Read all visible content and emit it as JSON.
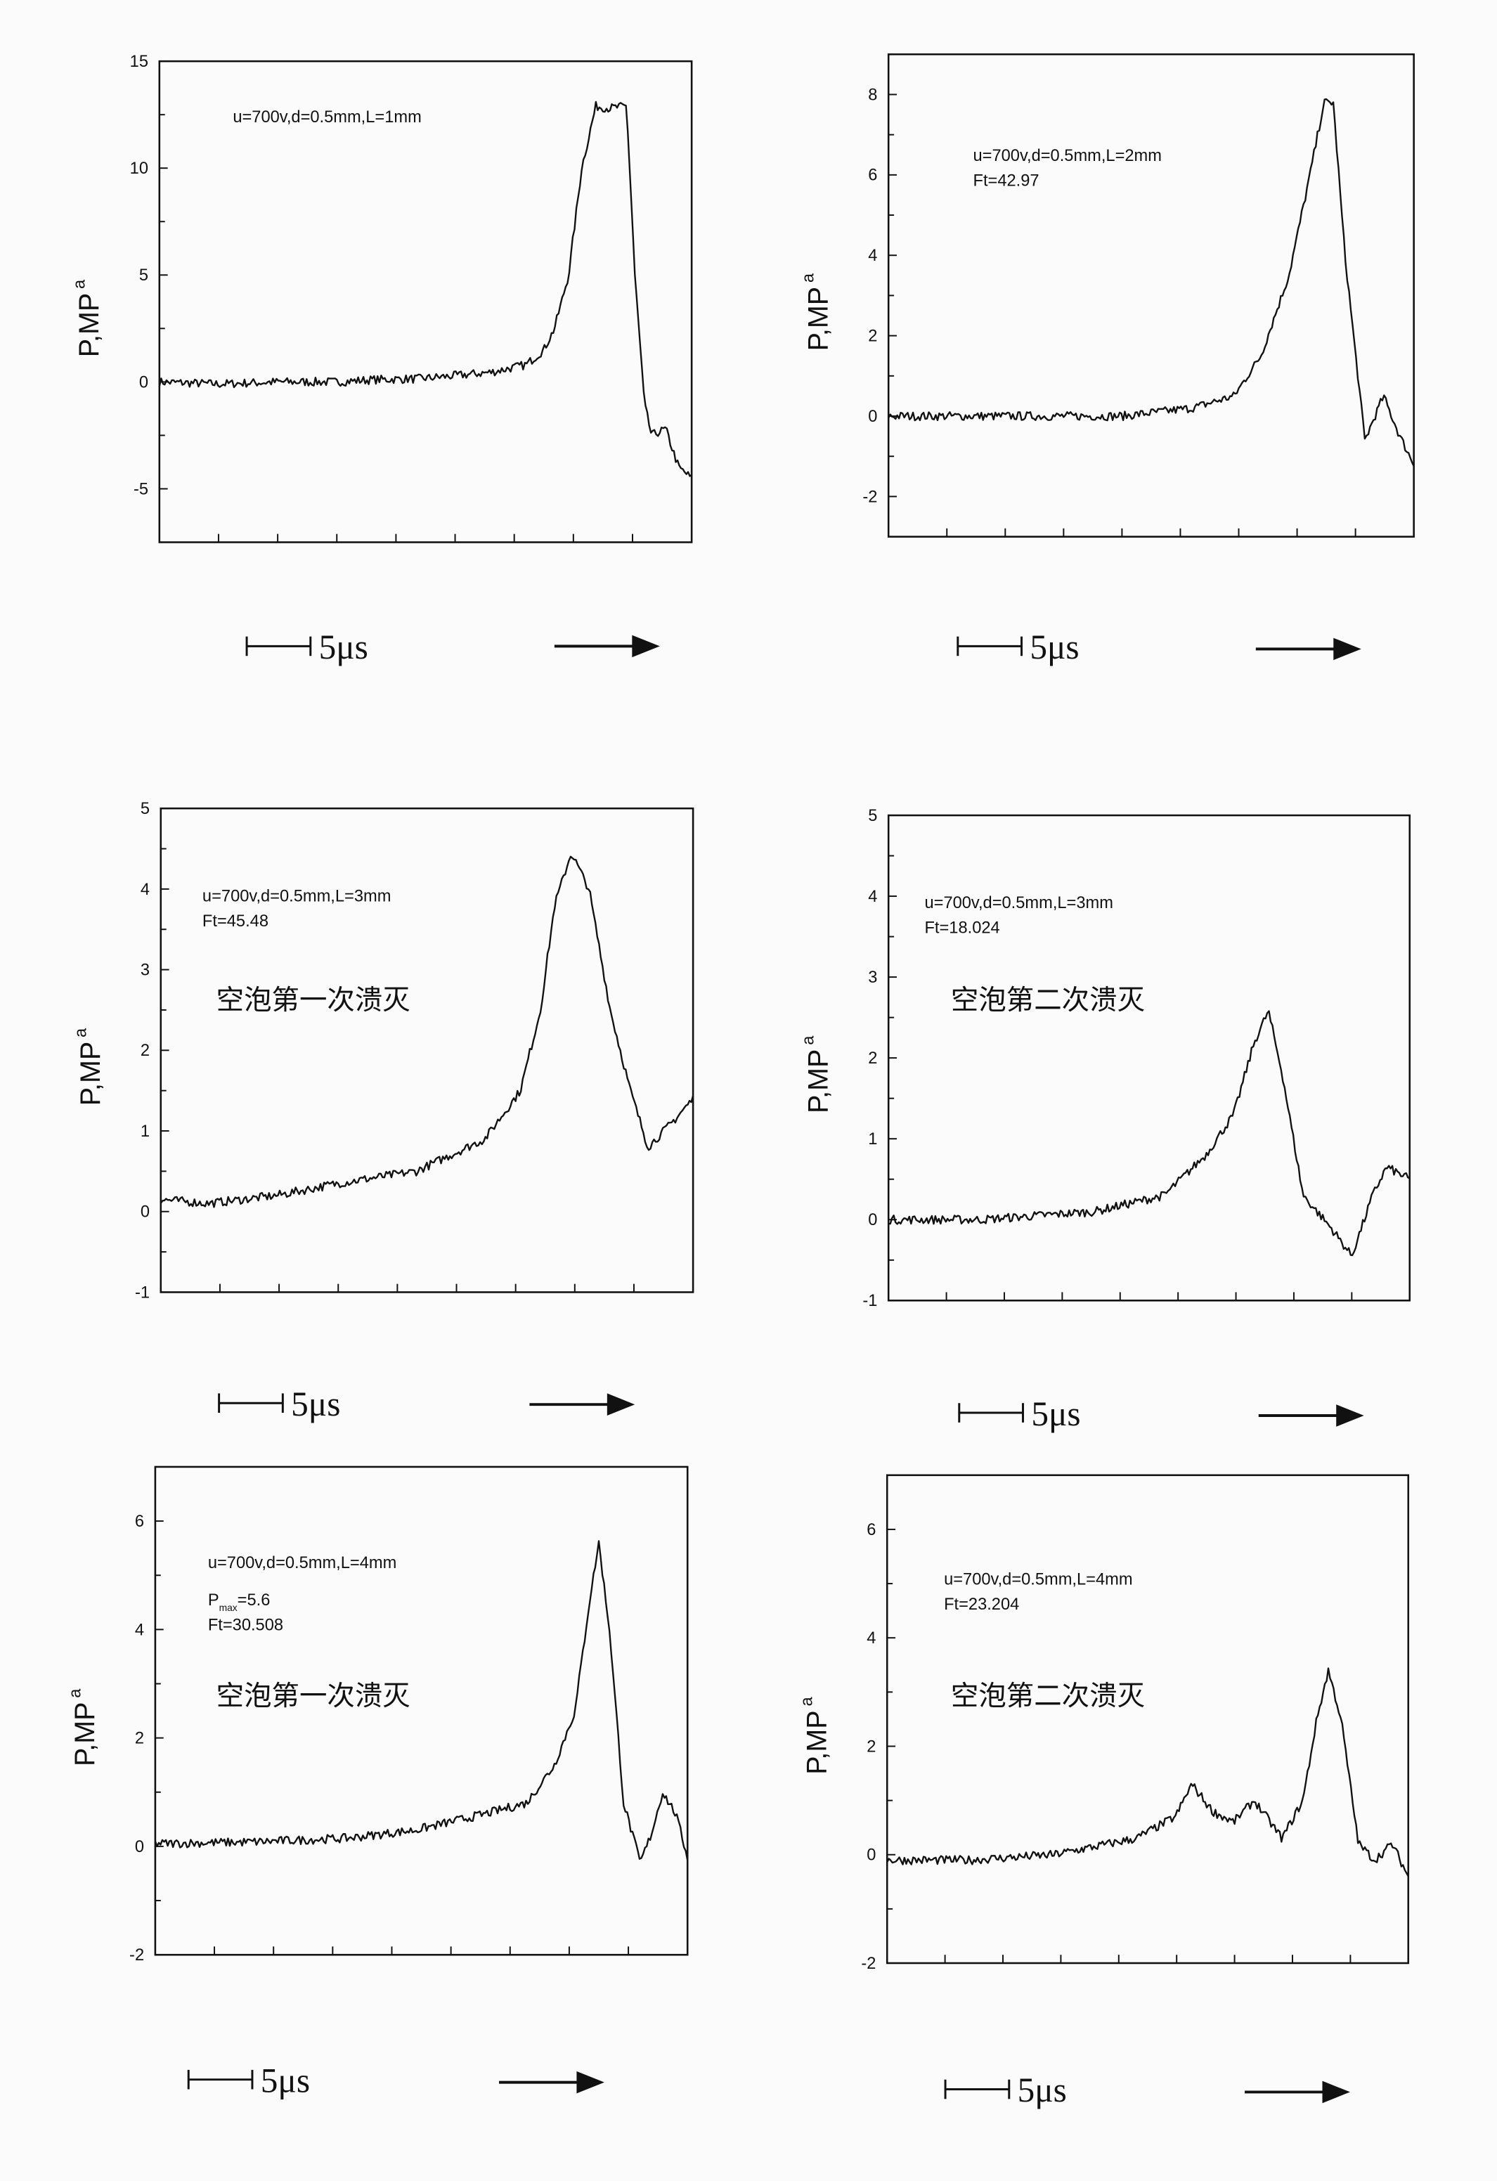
{
  "page": {
    "background": "#fbfbfb",
    "line_color": "#111111"
  },
  "scale_bar_label": "5μs",
  "chart_data": [
    {
      "type": "line",
      "ylabel": "P,MP",
      "ylabel_subscript": "a",
      "annotations": [
        "u=700v,d=0.5mm,L=1mm"
      ],
      "caption": "",
      "ylim": [
        -7.5,
        15
      ],
      "yticks": [
        -5,
        0,
        5,
        10,
        15
      ],
      "xlim": [
        0,
        45
      ],
      "x_unit": "μs",
      "grid": false,
      "x": [
        0,
        5,
        10,
        15,
        18,
        22,
        25.2,
        28,
        31,
        32.5,
        33.4,
        34.6,
        35.7,
        36.9,
        38,
        39.5,
        40.2,
        41,
        41.6,
        42.8,
        43.9,
        45
      ],
      "y": [
        0,
        -0.1,
        0,
        0,
        0.1,
        0.15,
        0.3,
        0.45,
        0.8,
        1.5,
        2.5,
        5,
        10,
        12.9,
        12.8,
        12.9,
        5,
        -1,
        -2.5,
        -2.2,
        -4,
        -4.5
      ]
    },
    {
      "type": "line",
      "ylabel": "P,MP",
      "ylabel_subscript": "a",
      "annotations": [
        "u=700v,d=0.5mm,L=2mm",
        "Ft=42.97"
      ],
      "caption": "",
      "ylim": [
        -3,
        9
      ],
      "yticks": [
        -2,
        0,
        2,
        4,
        6,
        8
      ],
      "xlim": [
        0,
        45
      ],
      "x_unit": "μs",
      "grid": false,
      "x": [
        0,
        10,
        20,
        26,
        29.6,
        31.9,
        34.3,
        36.1,
        37.3,
        38.1,
        39.1,
        40.8,
        42.4,
        43.8,
        45
      ],
      "y": [
        0,
        0,
        0,
        0.2,
        0.5,
        1.5,
        3.5,
        6,
        7.8,
        7.8,
        4,
        -0.6,
        0.5,
        -0.5,
        -1.2
      ]
    },
    {
      "type": "line",
      "ylabel": "P,MP",
      "ylabel_subscript": "a",
      "annotations": [
        "u=700v,d=0.5mm,L=3mm",
        "Ft=45.48"
      ],
      "caption": "空泡第一次溃灭",
      "ylim": [
        -1,
        5
      ],
      "yticks": [
        -1,
        0,
        1,
        2,
        3,
        4,
        5
      ],
      "xlim": [
        0,
        45
      ],
      "x_unit": "μs",
      "grid": false,
      "x": [
        0,
        4,
        9.8,
        15,
        21.6,
        27.4,
        30.4,
        32.1,
        33.3,
        34.7,
        36.2,
        38,
        39.7,
        41.2,
        43.2,
        45
      ],
      "y": [
        0.15,
        0.1,
        0.2,
        0.35,
        0.5,
        0.9,
        1.5,
        2.5,
        3.8,
        4.45,
        4,
        2.5,
        1.5,
        0.8,
        1.1,
        1.4
      ]
    },
    {
      "type": "line",
      "ylabel": "P,MP",
      "ylabel_subscript": "a",
      "annotations": [
        "u=700v,d=0.5mm,L=3mm",
        "Ft=18.024"
      ],
      "caption": "空泡第二次溃灭",
      "ylim": [
        -1,
        5
      ],
      "yticks": [
        -1,
        0,
        1,
        2,
        3,
        4,
        5
      ],
      "xlim": [
        0,
        45
      ],
      "x_unit": "μs",
      "grid": false,
      "x": [
        0,
        8,
        17.8,
        23.8,
        27.4,
        29.8,
        31.6,
        32.8,
        34,
        35.8,
        38.2,
        40,
        41.8,
        43,
        45
      ],
      "y": [
        0,
        0,
        0.1,
        0.3,
        0.8,
        1.3,
        2.2,
        2.58,
        1.8,
        0.3,
        -0.1,
        -0.45,
        0.3,
        0.65,
        0.5
      ]
    },
    {
      "type": "line",
      "ylabel": "P,MP",
      "ylabel_subscript": "a",
      "annotations": [
        "u=700v,d=0.5mm,L=4mm",
        "P|max|=5.6",
        "Ft=30.508"
      ],
      "caption": "空泡第一次溃灭",
      "ylim": [
        -2,
        7
      ],
      "yticks": [
        -2,
        0,
        2,
        4,
        6
      ],
      "xlim": [
        0,
        45
      ],
      "x_unit": "μs",
      "grid": false,
      "x": [
        0,
        8,
        16.2,
        22,
        27.9,
        31.4,
        33.75,
        35.5,
        36.7,
        37.5,
        38.4,
        39.6,
        41,
        41.9,
        42.9,
        44,
        45
      ],
      "y": [
        0.05,
        0.08,
        0.15,
        0.3,
        0.6,
        0.8,
        1.5,
        2.5,
        4.5,
        5.6,
        4,
        0.8,
        -0.3,
        0.2,
        1.0,
        0.6,
        -0.2
      ]
    },
    {
      "type": "line",
      "ylabel": "P,MP",
      "ylabel_subscript": "a",
      "annotations": [
        "u=700v,d=0.5mm,L=4mm",
        "Ft=23.204"
      ],
      "caption": "空泡第二次溃灭",
      "ylim": [
        -2,
        7
      ],
      "yticks": [
        -2,
        0,
        2,
        4,
        6
      ],
      "xlim": [
        0,
        45
      ],
      "x_unit": "μs",
      "grid": false,
      "x": [
        0,
        7,
        14.4,
        21.5,
        24.9,
        26.3,
        28.1,
        29.9,
        31.7,
        34.1,
        35.9,
        37.1,
        38.1,
        39.2,
        40.7,
        42.1,
        43.6,
        45
      ],
      "y": [
        -0.1,
        -0.1,
        0,
        0.3,
        0.7,
        1.3,
        0.8,
        0.6,
        1.0,
        0.3,
        1.0,
        2.5,
        3.4,
        2.5,
        0.2,
        -0.1,
        0.2,
        -0.4
      ]
    }
  ]
}
